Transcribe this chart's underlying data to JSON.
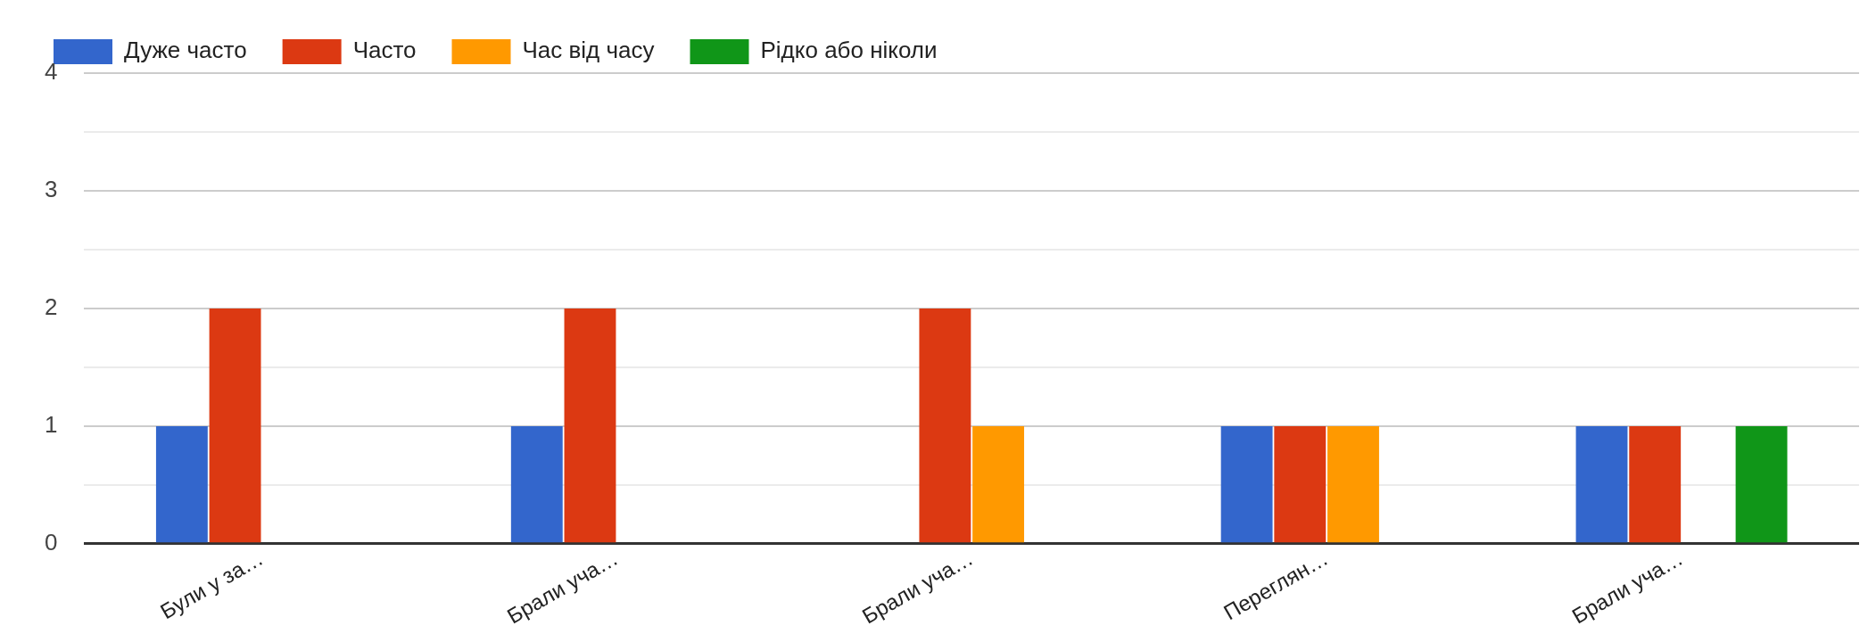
{
  "chart_data": {
    "type": "bar",
    "categories": [
      "Були у за…",
      "Брали уча…",
      "Брали уча…",
      "Переглян…",
      "Брали уча…"
    ],
    "series": [
      {
        "name": "Дуже часто",
        "color": "#3366cc",
        "values": [
          1,
          1,
          0,
          1,
          1
        ]
      },
      {
        "name": "Часто",
        "color": "#dc3912",
        "values": [
          2,
          2,
          2,
          1,
          1
        ]
      },
      {
        "name": "Час від часу",
        "color": "#ff9900",
        "values": [
          0,
          0,
          1,
          1,
          0
        ]
      },
      {
        "name": "Рідко або ніколи",
        "color": "#109618",
        "values": [
          0,
          0,
          0,
          0,
          1
        ]
      }
    ],
    "ylim": [
      0,
      4
    ],
    "yticks": [
      0,
      {
        "value": 0.5,
        "label": null
      },
      1,
      {
        "value": 1.5,
        "label": null
      },
      2,
      {
        "value": 2.5,
        "label": null
      },
      3,
      {
        "value": 3.5,
        "label": null
      },
      4
    ],
    "grid": "y",
    "legend": "top left"
  }
}
